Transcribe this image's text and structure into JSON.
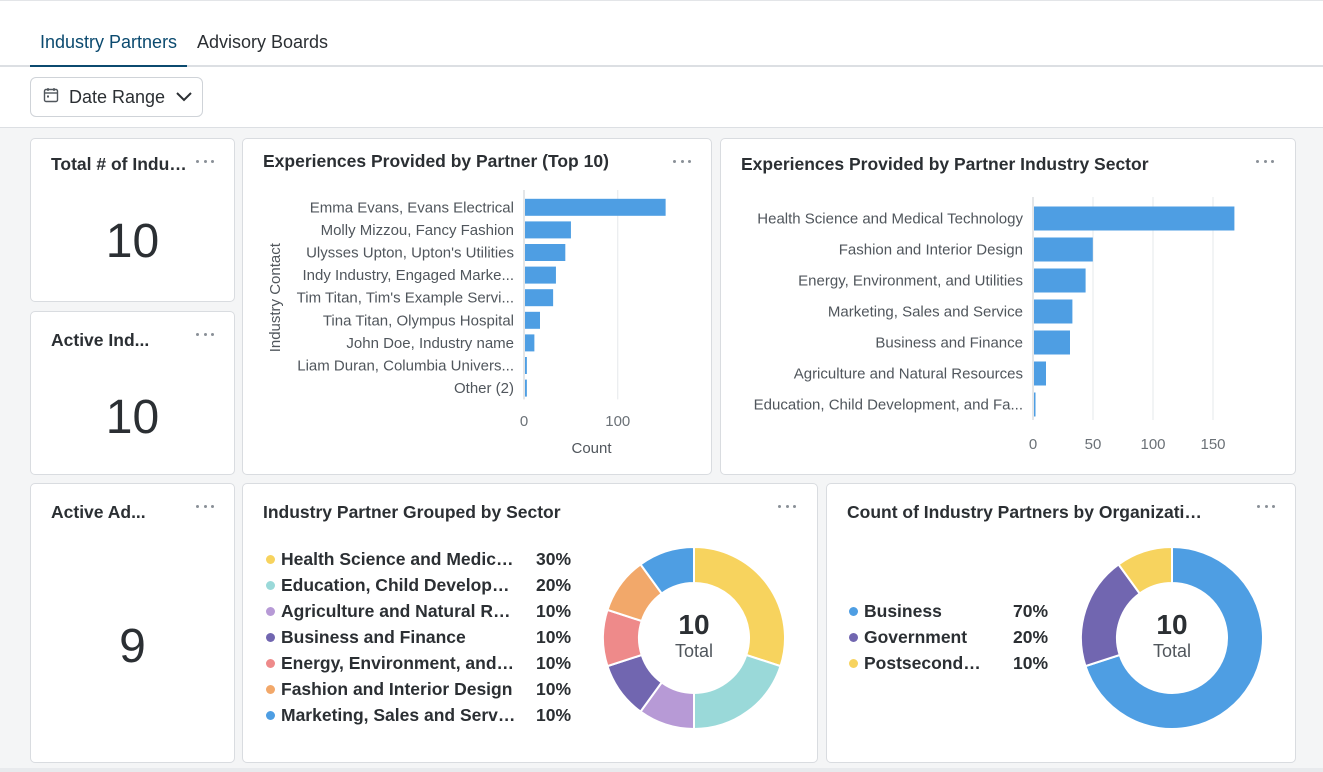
{
  "tabs": [
    {
      "label": "Industry Partners",
      "active": true
    },
    {
      "label": "Advisory Boards",
      "active": false
    }
  ],
  "toolbar": {
    "date_range_label": "Date Range",
    "icon": "calendar-icon"
  },
  "kpis": [
    {
      "title": "Total # of Indust...",
      "value": "10"
    },
    {
      "title": "Active Ind...",
      "value": "10"
    },
    {
      "title": "Active Ad...",
      "value": "9"
    }
  ],
  "chart_partner": {
    "title": "Experiences Provided by Partner (Top 10)",
    "chart_data": {
      "type": "bar",
      "orientation": "horizontal",
      "categories": [
        "Emma Evans, Evans Electrical",
        "Molly Mizzou, Fancy Fashion",
        "Ulysses Upton, Upton's Utilities",
        "Indy Industry, Engaged Marke...",
        "Tim Titan, Tim's Example Servi...",
        "Tina Titan, Olympus Hospital",
        "John Doe, Industry name",
        "Liam Duran, Columbia Univers...",
        "Other (2)"
      ],
      "values": [
        150,
        49,
        43,
        33,
        30,
        16,
        10,
        2,
        2
      ],
      "xlabel": "Count",
      "ylabel": "Industry Contact",
      "xlim": [
        0,
        160
      ],
      "xticks": [
        "0",
        "100"
      ],
      "grid": true,
      "color": "#4e9ee3"
    }
  },
  "chart_sector": {
    "title": "Experiences Provided by Partner Industry Sector",
    "chart_data": {
      "type": "bar",
      "orientation": "horizontal",
      "categories": [
        "Health Science and Medical Technology",
        "Fashion and Interior Design",
        "Energy, Environment, and Utilities",
        "Marketing, Sales and Service",
        "Business and Finance",
        "Agriculture and Natural Resources",
        "Education, Child Development, and Fa..."
      ],
      "values": [
        167,
        49,
        43,
        32,
        30,
        10,
        1
      ],
      "xlim": [
        0,
        180
      ],
      "xticks": [
        "0",
        "50",
        "100",
        "150"
      ],
      "grid": true,
      "color": "#4e9ee3"
    }
  },
  "donut_sector": {
    "title": "Industry Partner Grouped by Sector",
    "center_value": "10",
    "center_label": "Total",
    "chart_data": {
      "type": "pie",
      "donut": true,
      "labels": [
        "Health Science and Medical ...",
        "Education, Child Developme...",
        "Agriculture and Natural Res...",
        "Business and Finance",
        "Energy, Environment, and U...",
        "Fashion and Interior Design",
        "Marketing, Sales and Service"
      ],
      "percent_labels": [
        "30%",
        "20%",
        "10%",
        "10%",
        "10%",
        "10%",
        "10%"
      ],
      "values": [
        30,
        20,
        10,
        10,
        10,
        10,
        10
      ],
      "colors": [
        "#f7d35e",
        "#9ad9d9",
        "#b79ad6",
        "#7166b0",
        "#ee8a8a",
        "#f2a86a",
        "#4e9ee3"
      ]
    }
  },
  "donut_org": {
    "title": "Count of Industry Partners by Organization ...",
    "center_value": "10",
    "center_label": "Total",
    "chart_data": {
      "type": "pie",
      "donut": true,
      "labels": [
        "Business",
        "Government",
        "Postsecondar..."
      ],
      "percent_labels": [
        "70%",
        "20%",
        "10%"
      ],
      "values": [
        70,
        20,
        10
      ],
      "colors": [
        "#4e9ee3",
        "#7166b0",
        "#f7d35e"
      ]
    }
  }
}
